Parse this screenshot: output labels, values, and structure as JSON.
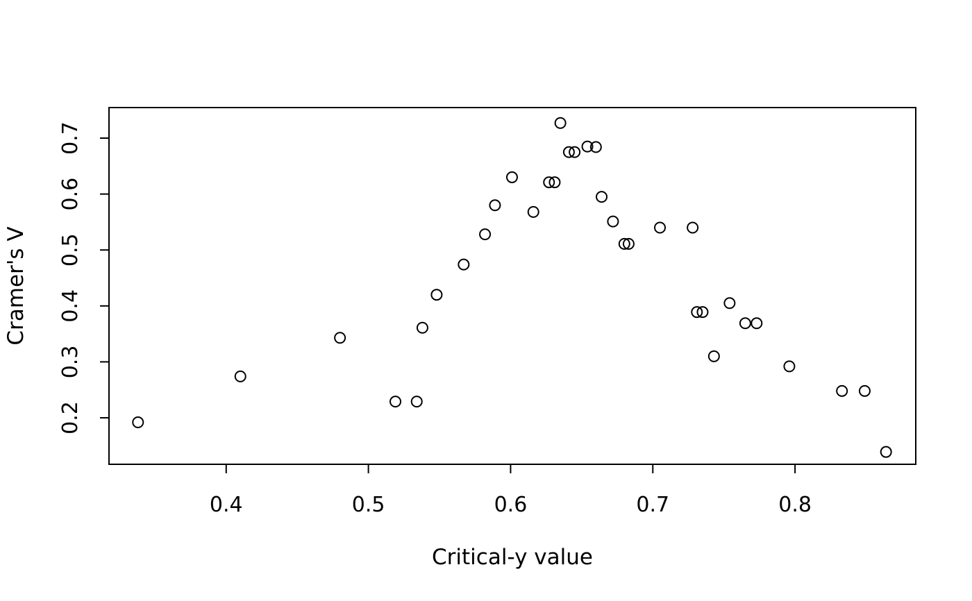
{
  "chart_data": {
    "type": "scatter",
    "title": "",
    "xlabel": "Critical-y value",
    "ylabel": "Cramer's V",
    "x_ticks": [
      0.4,
      0.5,
      0.6,
      0.7,
      0.8
    ],
    "y_ticks": [
      0.2,
      0.3,
      0.4,
      0.5,
      0.6,
      0.7
    ],
    "xlim": [
      0.3176,
      0.8849
    ],
    "ylim": [
      0.1169,
      0.7546
    ],
    "grid": false,
    "legend": null,
    "marker": "open-circle",
    "points": [
      {
        "x": 0.338,
        "y": 0.192
      },
      {
        "x": 0.41,
        "y": 0.274
      },
      {
        "x": 0.48,
        "y": 0.343
      },
      {
        "x": 0.519,
        "y": 0.229
      },
      {
        "x": 0.534,
        "y": 0.229
      },
      {
        "x": 0.538,
        "y": 0.361
      },
      {
        "x": 0.548,
        "y": 0.42
      },
      {
        "x": 0.567,
        "y": 0.474
      },
      {
        "x": 0.582,
        "y": 0.528
      },
      {
        "x": 0.589,
        "y": 0.58
      },
      {
        "x": 0.601,
        "y": 0.63
      },
      {
        "x": 0.616,
        "y": 0.568
      },
      {
        "x": 0.627,
        "y": 0.621
      },
      {
        "x": 0.631,
        "y": 0.621
      },
      {
        "x": 0.635,
        "y": 0.727
      },
      {
        "x": 0.641,
        "y": 0.675
      },
      {
        "x": 0.645,
        "y": 0.675
      },
      {
        "x": 0.654,
        "y": 0.685
      },
      {
        "x": 0.66,
        "y": 0.684
      },
      {
        "x": 0.664,
        "y": 0.595
      },
      {
        "x": 0.672,
        "y": 0.551
      },
      {
        "x": 0.68,
        "y": 0.511
      },
      {
        "x": 0.683,
        "y": 0.511
      },
      {
        "x": 0.705,
        "y": 0.54
      },
      {
        "x": 0.728,
        "y": 0.54
      },
      {
        "x": 0.731,
        "y": 0.389
      },
      {
        "x": 0.735,
        "y": 0.389
      },
      {
        "x": 0.743,
        "y": 0.31
      },
      {
        "x": 0.754,
        "y": 0.405
      },
      {
        "x": 0.765,
        "y": 0.369
      },
      {
        "x": 0.773,
        "y": 0.369
      },
      {
        "x": 0.796,
        "y": 0.292
      },
      {
        "x": 0.833,
        "y": 0.248
      },
      {
        "x": 0.849,
        "y": 0.248
      },
      {
        "x": 0.864,
        "y": 0.139
      }
    ],
    "colors": {
      "foreground": "#000000",
      "background": "#ffffff",
      "marker_stroke": "#000000"
    }
  }
}
